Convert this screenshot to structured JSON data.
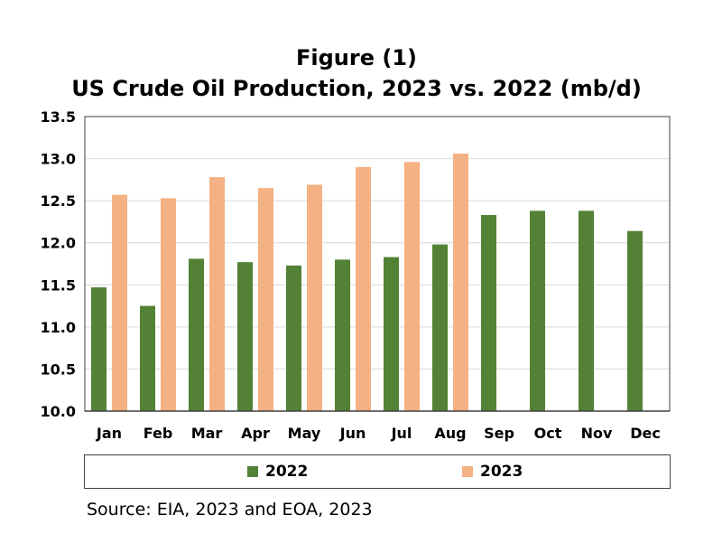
{
  "title_line1": "Figure (1)",
  "title_line2": "US Crude Oil Production, 2023 vs. 2022  (mb/d)",
  "source": "Source: EIA, 2023 and EOA, 2023",
  "chart_data": {
    "type": "bar",
    "title": "Figure (1) US Crude Oil Production, 2023 vs. 2022  (mb/d)",
    "categories": [
      "Jan",
      "Feb",
      "Mar",
      "Apr",
      "May",
      "Jun",
      "Jul",
      "Aug",
      "Sep",
      "Oct",
      "Nov",
      "Dec"
    ],
    "series": [
      {
        "name": "2022",
        "color": "#538135",
        "values": [
          11.47,
          11.25,
          11.81,
          11.77,
          11.73,
          11.8,
          11.83,
          11.98,
          12.33,
          12.38,
          12.38,
          12.14
        ]
      },
      {
        "name": "2023",
        "color": "#F4B183",
        "values": [
          12.57,
          12.53,
          12.78,
          12.65,
          12.69,
          12.9,
          12.96,
          13.06,
          null,
          null,
          null,
          null
        ]
      }
    ],
    "ylim": [
      10.0,
      13.5
    ],
    "yticks": [
      "10.0",
      "10.5",
      "11.0",
      "11.5",
      "12.0",
      "12.5",
      "13.0",
      "13.5"
    ],
    "grid": true,
    "legend": "bottom"
  }
}
